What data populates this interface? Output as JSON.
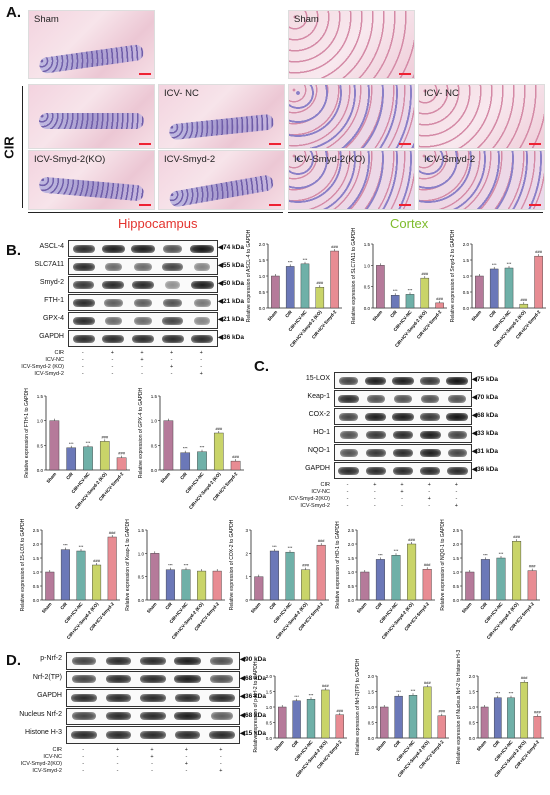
{
  "panels": {
    "a": "A.",
    "b": "B.",
    "c": "C.",
    "d": "D."
  },
  "panel_a": {
    "cir_label": "CIR",
    "hippocampus_label": "Hippocampus",
    "cortex_label": "Cortex",
    "hippocampus_color": "#e3342f",
    "cortex_color": "#7dbb2a",
    "images": {
      "h_sham": "Sham",
      "h_icv_nc": "ICV- NC",
      "h_ko": "ICV-Smyd-2(KO)",
      "h_smyd2": "ICV-Smyd-2",
      "c_sham": "Sham",
      "c_icv_nc": "ICV- NC",
      "c_ko": "ICV-Smyd-2(KO)",
      "c_smyd2": "ICV-Smyd-2"
    }
  },
  "blot_b": {
    "rows": [
      {
        "name": "ASCL-4",
        "kda": "◀74 kDa"
      },
      {
        "name": "SLC7A11",
        "kda": "◀55 kDa"
      },
      {
        "name": "Smyd-2",
        "kda": "◀50 kDa"
      },
      {
        "name": "FTH-1",
        "kda": "◀21 kDa"
      },
      {
        "name": "GPX-4",
        "kda": "◀21 kDa"
      },
      {
        "name": "GAPDH",
        "kda": "◀36 kDa"
      }
    ],
    "groups": [
      {
        "label": "CIR",
        "marks": [
          "-",
          "+",
          "+",
          "+",
          "+"
        ]
      },
      {
        "label": "ICV-NC",
        "marks": [
          "-",
          "-",
          "+",
          "-",
          "-"
        ]
      },
      {
        "label": "ICV-Smyd-2 (KO)",
        "marks": [
          "-",
          "-",
          "-",
          "+",
          "-"
        ]
      },
      {
        "label": "ICV-Smyd-2",
        "marks": [
          "-",
          "-",
          "-",
          "-",
          "+"
        ]
      }
    ]
  },
  "blot_c": {
    "rows": [
      {
        "name": "15-LOX",
        "kda": "◀75 kDa"
      },
      {
        "name": "Keap-1",
        "kda": "◀70 kDa"
      },
      {
        "name": "COX-2",
        "kda": "◀68 kDa"
      },
      {
        "name": "HO-1",
        "kda": "◀33 kDa"
      },
      {
        "name": "NQO-1",
        "kda": "◀31 kDa"
      },
      {
        "name": "GAPDH",
        "kda": "◀36 kDa"
      }
    ],
    "groups": [
      {
        "label": "CIR",
        "marks": [
          "-",
          "+",
          "+",
          "+",
          "+"
        ]
      },
      {
        "label": "ICV-NC",
        "marks": [
          "-",
          "-",
          "+",
          "-",
          "-"
        ]
      },
      {
        "label": "ICV-Smyd-2(KO)",
        "marks": [
          "-",
          "-",
          "-",
          "+",
          "-"
        ]
      },
      {
        "label": "ICV-Smyd-2",
        "marks": [
          "-",
          "-",
          "-",
          "-",
          "+"
        ]
      }
    ]
  },
  "blot_d": {
    "rows": [
      {
        "name": "p-Nrf-2",
        "kda": "◀90 kDa"
      },
      {
        "name": "Nrf-2(TP)",
        "kda": "◀68 kDa"
      },
      {
        "name": "GAPDH",
        "kda": "◀36 kDa"
      },
      {
        "name": "Nucleus Nrf-2",
        "kda": "◀68 kDa"
      },
      {
        "name": "Histone H-3",
        "kda": "◀15 kDa"
      }
    ],
    "groups": [
      {
        "label": "CIR",
        "marks": [
          "-",
          "+",
          "+",
          "+",
          "+"
        ]
      },
      {
        "label": "ICV-NC",
        "marks": [
          "-",
          "-",
          "+",
          "-",
          "-"
        ]
      },
      {
        "label": "ICV-Smyd-2(KO)",
        "marks": [
          "-",
          "-",
          "-",
          "+",
          "-"
        ]
      },
      {
        "label": "ICV-Smyd-2",
        "marks": [
          "-",
          "-",
          "-",
          "-",
          "+"
        ]
      }
    ]
  },
  "bar_colors": [
    "#b57a9a",
    "#6b78b8",
    "#6fb0a8",
    "#c9d469",
    "#e88c93"
  ],
  "chart_data": [
    {
      "id": "ascl4",
      "type": "bar",
      "ylabel": "Relative expression of ASCL-4 to GAPDH",
      "categories": [
        "Sham",
        "CIR",
        "CIR+ICV-NC",
        "CIR+ICV-Smyd-2 (KO)",
        "CIR+ICV-Smyd-2"
      ],
      "values": [
        1.0,
        1.3,
        1.38,
        0.65,
        1.78
      ],
      "stars": [
        "",
        "***",
        "***",
        "###",
        "###"
      ],
      "ylim": [
        0,
        2.0
      ],
      "yticks": [
        "0.0",
        "0.5",
        "1.0",
        "1.5",
        "2.0"
      ]
    },
    {
      "id": "slc7a11",
      "type": "bar",
      "ylabel": "Relative expression of SLC7A11 to GAPDH",
      "categories": [
        "Sham",
        "CIR",
        "CIR+ICV-NC",
        "CIR+ICV-Smyd-2 (KO)",
        "CIR+ICV-Smyd-2"
      ],
      "values": [
        1.0,
        0.3,
        0.32,
        0.7,
        0.12
      ],
      "stars": [
        "",
        "***",
        "***",
        "###",
        "###"
      ],
      "ylim": [
        0,
        1.5
      ],
      "yticks": [
        "0.0",
        "0.5",
        "1.0",
        "1.5"
      ]
    },
    {
      "id": "smyd2",
      "type": "bar",
      "ylabel": "Relative expression of Smyd-2 to GAPDH",
      "categories": [
        "Sham",
        "CIR",
        "CIR+ICV-NC",
        "CIR+ICV-Smyd-2 (KO)",
        "CIR+ICV-Smyd-2"
      ],
      "values": [
        1.0,
        1.22,
        1.25,
        0.12,
        1.62
      ],
      "stars": [
        "",
        "***",
        "***",
        "###",
        "###"
      ],
      "ylim": [
        0,
        2.0
      ],
      "yticks": [
        "0.0",
        "0.5",
        "1.0",
        "1.5",
        "2.0"
      ]
    },
    {
      "id": "fth1",
      "type": "bar",
      "ylabel": "Relative expression of FTH-1 to GAPDH",
      "categories": [
        "Sham",
        "CIR",
        "CIR+ICV-NC",
        "CIR+ICV-Smyd-2 (KO)",
        "CIR+ICV-Smyd-2"
      ],
      "values": [
        1.0,
        0.45,
        0.47,
        0.58,
        0.25
      ],
      "stars": [
        "",
        "***",
        "***",
        "###",
        "###"
      ],
      "ylim": [
        0,
        1.5
      ],
      "yticks": [
        "0.0",
        "0.5",
        "1.0",
        "1.5"
      ]
    },
    {
      "id": "gpx4",
      "type": "bar",
      "ylabel": "Relative expression of GPX-4 to GAPDH",
      "categories": [
        "Sham",
        "CIR",
        "CIR+ICV-NC",
        "CIR+ICV-Smyd-2 (KO)",
        "CIR+ICV-Smyd-2"
      ],
      "values": [
        1.0,
        0.35,
        0.37,
        0.75,
        0.18
      ],
      "stars": [
        "",
        "***",
        "***",
        "###",
        "###"
      ],
      "ylim": [
        0,
        1.5
      ],
      "yticks": [
        "0.0",
        "0.5",
        "1.0",
        "1.5"
      ]
    },
    {
      "id": "lox15",
      "type": "bar",
      "ylabel": "Relative expression of 15-LOX to GAPDH",
      "categories": [
        "Sham",
        "CIR",
        "CIR+ICV-NC",
        "CIR+ICV-Smyd-2 (KO)",
        "CIR+ICV-Smyd-2"
      ],
      "values": [
        1.0,
        1.8,
        1.75,
        1.25,
        2.25
      ],
      "stars": [
        "",
        "***",
        "***",
        "###",
        "###"
      ],
      "ylim": [
        0,
        2.5
      ],
      "yticks": [
        "0.0",
        "0.5",
        "1.0",
        "1.5",
        "2.0",
        "2.5"
      ]
    },
    {
      "id": "keap1",
      "type": "bar",
      "ylabel": "Relative expression of Keap-1 to GAPDH",
      "categories": [
        "Sham",
        "CIR",
        "CIR+ICV-NC",
        "CIR+ICV-Smyd-2 (KO)",
        "CIR+ICV-Smyd-2"
      ],
      "values": [
        1.0,
        0.65,
        0.65,
        0.62,
        0.62
      ],
      "stars": [
        "",
        "***",
        "***",
        "",
        ""
      ],
      "ylim": [
        0,
        1.5
      ],
      "yticks": [
        "0.0",
        "0.5",
        "1.0",
        "1.5"
      ]
    },
    {
      "id": "cox2",
      "type": "bar",
      "ylabel": "Relative expression of COX-2 to GAPDH",
      "categories": [
        "Sham",
        "CIR",
        "CIR+ICV-NC",
        "CIR+ICV-Smyd-2 (KO)",
        "CIR+ICV-Smyd-2"
      ],
      "values": [
        1.0,
        2.1,
        2.05,
        1.3,
        2.35
      ],
      "stars": [
        "",
        "***",
        "***",
        "###",
        "###"
      ],
      "ylim": [
        0,
        3.0
      ],
      "yticks": [
        "0",
        "1",
        "2",
        "3"
      ]
    },
    {
      "id": "ho1",
      "type": "bar",
      "ylabel": "Relative expression of HO-1 to GAPDH",
      "categories": [
        "Sham",
        "CIR",
        "CIR+ICV-NC",
        "CIR+ICV-Smyd-2 (KO)",
        "CIR+ICV-Smyd-2"
      ],
      "values": [
        1.0,
        1.45,
        1.6,
        2.0,
        1.1
      ],
      "stars": [
        "",
        "***",
        "***",
        "###",
        "###"
      ],
      "ylim": [
        0,
        2.5
      ],
      "yticks": [
        "0.0",
        "0.5",
        "1.0",
        "1.5",
        "2.0",
        "2.5"
      ]
    },
    {
      "id": "nqo1",
      "type": "bar",
      "ylabel": "Relative expression of NQO-1 to GAPDH",
      "categories": [
        "Sham",
        "CIR",
        "CIR+ICV-NC",
        "CIR+ICV-Smyd-2 (KO)",
        "CIR+ICV-Smyd-2"
      ],
      "values": [
        1.0,
        1.45,
        1.5,
        2.1,
        1.05
      ],
      "stars": [
        "",
        "***",
        "***",
        "###",
        "###"
      ],
      "ylim": [
        0,
        2.5
      ],
      "yticks": [
        "0.0",
        "0.5",
        "1.0",
        "1.5",
        "2.0",
        "2.5"
      ]
    },
    {
      "id": "pnrf2",
      "type": "bar",
      "ylabel": "Relative expression of p-Nrf-2 to GAPDH",
      "categories": [
        "Sham",
        "CIR",
        "CIR+ICV-NC",
        "CIR+ICV-Smyd-2 (KO)",
        "CIR+ICV-Smyd-2"
      ],
      "values": [
        1.0,
        1.2,
        1.25,
        1.55,
        0.75
      ],
      "stars": [
        "",
        "***",
        "***",
        "###",
        "###"
      ],
      "ylim": [
        0,
        2.0
      ],
      "yticks": [
        "0.0",
        "0.5",
        "1.0",
        "1.5",
        "2.0"
      ]
    },
    {
      "id": "nrf2tp",
      "type": "bar",
      "ylabel": "Relative expression of Nrf-2(TP) to GAPDH",
      "categories": [
        "Sham",
        "CIR",
        "CIR+ICV-NC",
        "CIR+ICV-Smyd-2 (KO)",
        "CIR+ICV-Smyd-2"
      ],
      "values": [
        1.0,
        1.35,
        1.38,
        1.65,
        0.72
      ],
      "stars": [
        "",
        "***",
        "***",
        "###",
        "###"
      ],
      "ylim": [
        0,
        2.0
      ],
      "yticks": [
        "0.0",
        "0.5",
        "1.0",
        "1.5",
        "2.0"
      ]
    },
    {
      "id": "nucnrf2",
      "type": "bar",
      "ylabel": "Relative expression of Nucleus Nrf-2 to Histone H-3",
      "categories": [
        "Sham",
        "CIR",
        "CIR+ICV-NC",
        "CIR+ICV-Smyd-2 (KO)",
        "CIR+ICV-Smyd-2"
      ],
      "values": [
        1.0,
        1.3,
        1.3,
        1.8,
        0.7
      ],
      "stars": [
        "",
        "***",
        "***",
        "###",
        "###"
      ],
      "ylim": [
        0,
        2.0
      ],
      "yticks": [
        "0.0",
        "0.5",
        "1.0",
        "1.5",
        "2.0"
      ]
    }
  ]
}
